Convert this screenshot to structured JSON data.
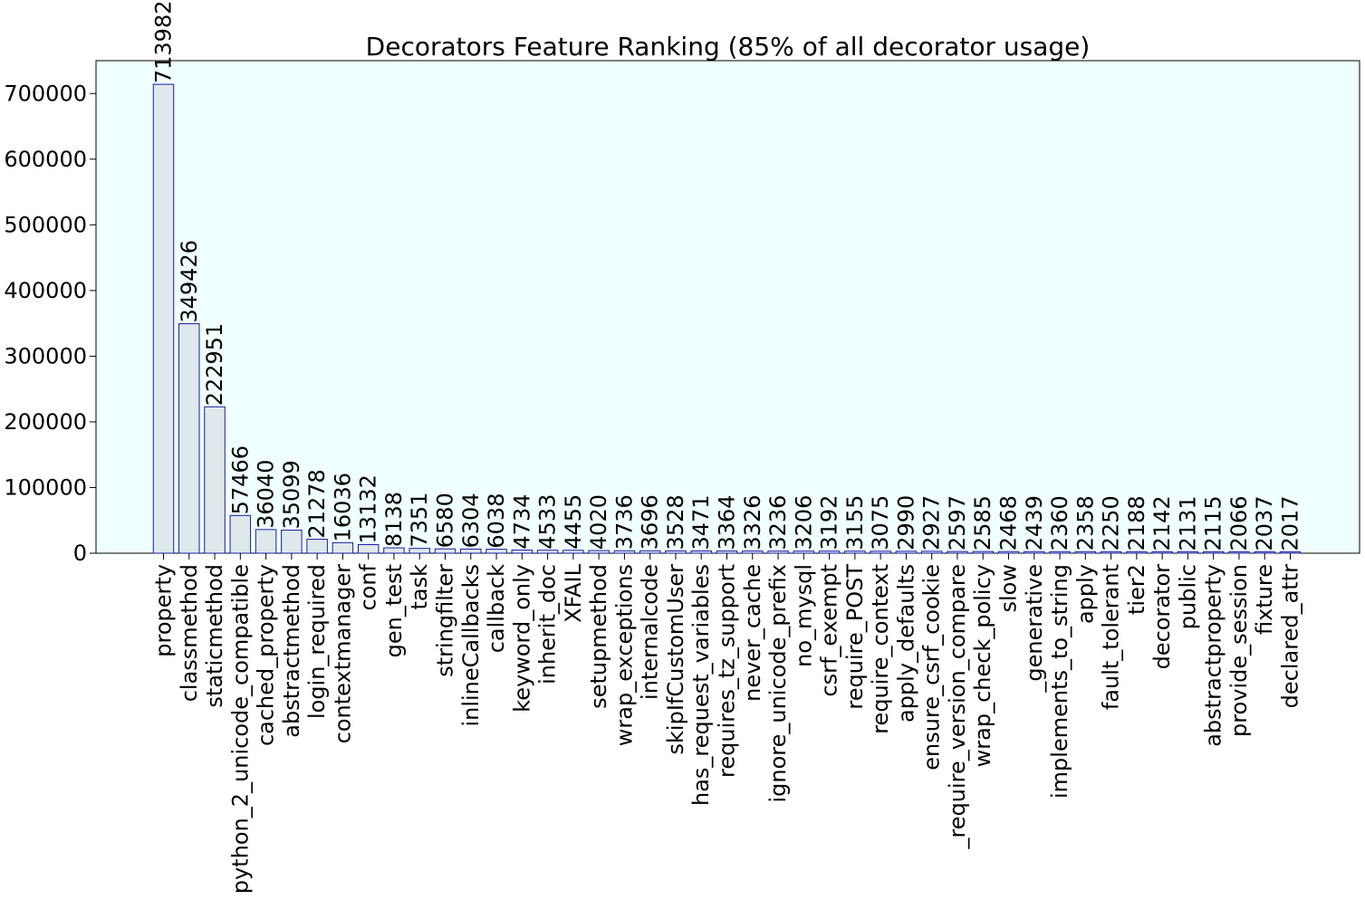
{
  "chart_data": {
    "type": "bar",
    "title": "Decorators Feature Ranking (85% of all decorator usage)",
    "xlabel": "",
    "ylabel": "",
    "ylim": [
      0,
      750000
    ],
    "yticks": [
      0,
      100000,
      200000,
      300000,
      400000,
      500000,
      600000,
      700000
    ],
    "ytick_labels": [
      "0",
      "100000",
      "200000",
      "300000",
      "400000",
      "500000",
      "600000",
      "700000"
    ],
    "categories": [
      "property",
      "classmethod",
      "staticmethod",
      "python_2_unicode_compatible",
      "cached_property",
      "abstractmethod",
      "login_required",
      "contextmanager",
      "conf",
      "gen_test",
      "task",
      "stringfilter",
      "inlineCallbacks",
      "callback",
      "keyword_only",
      "inherit_doc",
      "XFAIL",
      "setupmethod",
      "wrap_exceptions",
      "internalcode",
      "skipIfCustomUser",
      "has_request_variables",
      "requires_tz_support",
      "never_cache",
      "ignore_unicode_prefix",
      "no_mysql",
      "csrf_exempt",
      "require_POST",
      "require_context",
      "apply_defaults",
      "ensure_csrf_cookie",
      "_require_version_compare",
      "wrap_check_policy",
      "slow",
      "_generative",
      "implements_to_string",
      "apply",
      "fault_tolerant",
      "tier2",
      "decorator",
      "public",
      "abstractproperty",
      "provide_session",
      "fixture",
      "declared_attr"
    ],
    "values": [
      713982,
      349426,
      222951,
      57466,
      36040,
      35099,
      21278,
      16036,
      13132,
      8138,
      7351,
      6580,
      6304,
      6038,
      4734,
      4533,
      4455,
      4020,
      3736,
      3696,
      3528,
      3471,
      3364,
      3326,
      3236,
      3206,
      3192,
      3155,
      3075,
      2990,
      2927,
      2597,
      2585,
      2468,
      2439,
      2360,
      2358,
      2250,
      2188,
      2142,
      2131,
      2115,
      2066,
      2037,
      2017
    ],
    "data_labels": [
      "713982",
      "349426",
      "222951",
      "57466",
      "36040",
      "35099",
      "21278",
      "16036",
      "13132",
      "8138",
      "7351",
      "6580",
      "6304",
      "6038",
      "4734",
      "4533",
      "4455",
      "4020",
      "3736",
      "3696",
      "3528",
      "3471",
      "3364",
      "3326",
      "3236",
      "3206",
      "3192",
      "3155",
      "3075",
      "2990",
      "2927",
      "2597",
      "2585",
      "2468",
      "2439",
      "2360",
      "2358",
      "2250",
      "2188",
      "2142",
      "2131",
      "2115",
      "2066",
      "2037",
      "2017"
    ],
    "grid": false,
    "legend": "none",
    "colors": {
      "plot_background": "#f0ffff",
      "bar_fill": "#dfe8ea",
      "bar_edge": "#1a1aa6",
      "axis": "#000000"
    }
  }
}
